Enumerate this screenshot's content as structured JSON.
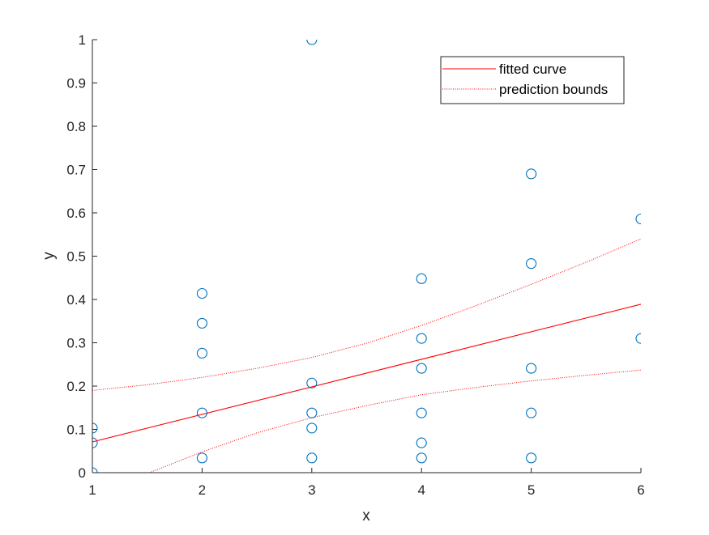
{
  "chart_data": {
    "type": "scatter",
    "xlabel": "x",
    "ylabel": "y",
    "xlim": [
      1,
      6
    ],
    "ylim": [
      0,
      1
    ],
    "xticks": [
      "1",
      "2",
      "3",
      "4",
      "5",
      "6"
    ],
    "yticks": [
      "0",
      "0.1",
      "0.2",
      "0.3",
      "0.4",
      "0.5",
      "0.6",
      "0.7",
      "0.8",
      "0.9",
      "1"
    ],
    "grid": false,
    "legend_position": "top-right",
    "series": [
      {
        "kind": "points",
        "marker": "open-circle",
        "color": "#0072BD",
        "points": [
          [
            1,
            0.0
          ],
          [
            1,
            0.069
          ],
          [
            1,
            0.103
          ],
          [
            2,
            0.034
          ],
          [
            2,
            0.138
          ],
          [
            2,
            0.276
          ],
          [
            2,
            0.345
          ],
          [
            2,
            0.414
          ],
          [
            3,
            0.034
          ],
          [
            3,
            0.103
          ],
          [
            3,
            0.138
          ],
          [
            3,
            0.207
          ],
          [
            3,
            1.0
          ],
          [
            4,
            0.034
          ],
          [
            4,
            0.069
          ],
          [
            4,
            0.138
          ],
          [
            4,
            0.241
          ],
          [
            4,
            0.31
          ],
          [
            4,
            0.448
          ],
          [
            5,
            0.034
          ],
          [
            5,
            0.138
          ],
          [
            5,
            0.241
          ],
          [
            5,
            0.483
          ],
          [
            5,
            0.69
          ],
          [
            6,
            0.31
          ],
          [
            6,
            0.586
          ]
        ]
      },
      {
        "name": "fitted curve",
        "kind": "line",
        "style": "solid",
        "color": "#FF0000",
        "x": [
          1,
          6
        ],
        "y": [
          0.071,
          0.389
        ]
      },
      {
        "name": "prediction bounds",
        "kind": "line",
        "style": "dotted",
        "color": "#FF0000",
        "x": [
          1,
          1.5,
          2,
          2.5,
          3,
          3.5,
          4,
          4.5,
          5,
          5.5,
          6
        ],
        "y": [
          0.19,
          0.203,
          0.22,
          0.241,
          0.266,
          0.299,
          0.34,
          0.386,
          0.435,
          0.486,
          0.54
        ]
      },
      {
        "kind": "line",
        "style": "dotted",
        "color": "#FF0000",
        "x": [
          1.52,
          2,
          2.5,
          3,
          3.5,
          4,
          4.5,
          5,
          5.5,
          6
        ],
        "y": [
          0.0,
          0.048,
          0.092,
          0.127,
          0.155,
          0.18,
          0.197,
          0.212,
          0.225,
          0.237
        ]
      }
    ]
  }
}
